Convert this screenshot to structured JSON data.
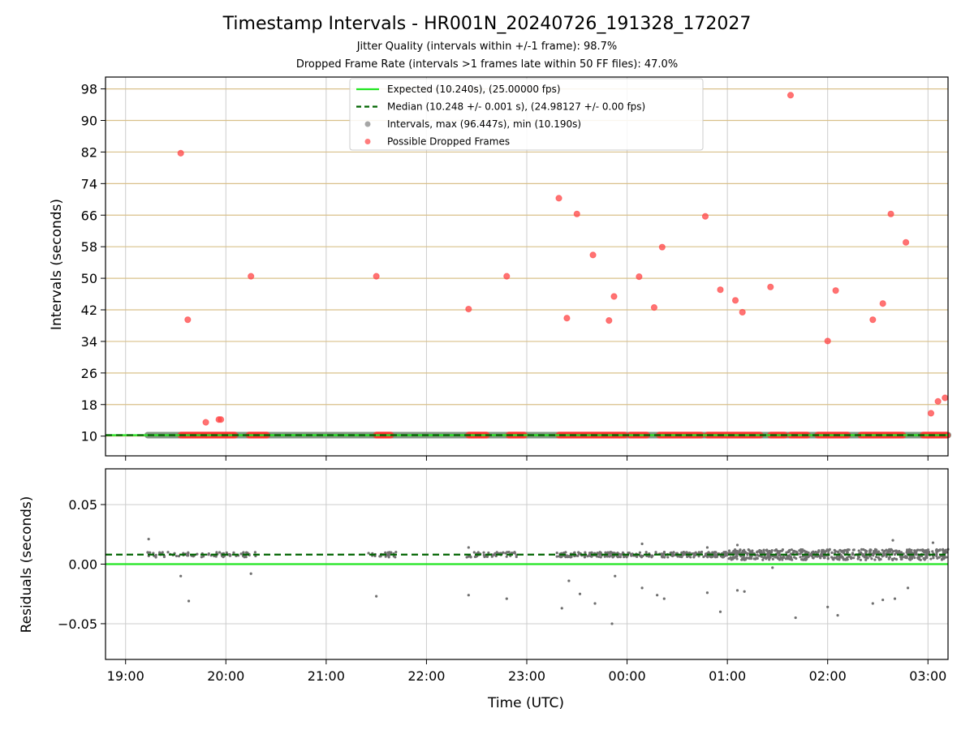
{
  "chart_data": [
    {
      "type": "scatter",
      "panel": "top",
      "title": "Timestamp Intervals - HR001N_20240726_191328_172027",
      "subtitles": [
        "Jitter Quality (intervals within +/-1 frame): 98.7%",
        "Dropped Frame Rate (intervals >1 frames late within 50 FF files): 47.0%"
      ],
      "xlabel": "",
      "ylabel": "Intervals (seconds)",
      "x_ticks": [
        "19:00",
        "20:00",
        "21:00",
        "22:00",
        "23:00",
        "00:00",
        "01:00",
        "02:00",
        "03:00"
      ],
      "y_ticks": [
        10,
        18,
        26,
        34,
        42,
        50,
        58,
        66,
        74,
        82,
        90,
        98
      ],
      "ylim": [
        5.0,
        101.0
      ],
      "xlim_hours": [
        -0.2,
        8.2
      ],
      "grid": true,
      "legend_position": "upper center",
      "legend": [
        {
          "label": "Expected (10.240s), (25.00000 fps)",
          "color": "#22e522",
          "style": "solid line"
        },
        {
          "label": "Median (10.248 +/- 0.001 s), (24.98127 +/- 0.00 fps)",
          "color": "#006400",
          "style": "dashed line"
        },
        {
          "label": "Intervals, max (96.447s), min (10.190s)",
          "color": "#808080",
          "style": "marker"
        },
        {
          "label": "Possible Dropped Frames",
          "color": "#ff4444",
          "style": "marker"
        }
      ],
      "expected_interval": 10.24,
      "median_interval": 10.248,
      "regular_intervals_range_hours": [
        0.22,
        8.2
      ],
      "dropped_frame_bands_hours": [
        [
          0.55,
          1.1
        ],
        [
          1.23,
          1.42
        ],
        [
          2.5,
          2.65
        ],
        [
          3.42,
          3.6
        ],
        [
          3.82,
          3.98
        ],
        [
          4.32,
          4.98
        ],
        [
          5.03,
          5.2
        ],
        [
          5.32,
          5.75
        ],
        [
          5.8,
          6.33
        ],
        [
          6.43,
          6.58
        ],
        [
          6.63,
          6.8
        ],
        [
          6.9,
          7.2
        ],
        [
          7.33,
          7.75
        ],
        [
          7.95,
          8.2
        ]
      ],
      "series": [
        {
          "name": "Possible Dropped Frames",
          "points": [
            [
              0.55,
              81.7
            ],
            [
              0.62,
              39.5
            ],
            [
              0.8,
              13.5
            ],
            [
              0.93,
              14.2
            ],
            [
              0.95,
              14.2
            ],
            [
              1.25,
              50.5
            ],
            [
              2.5,
              50.5
            ],
            [
              3.42,
              42.2
            ],
            [
              3.8,
              50.5
            ],
            [
              4.32,
              70.3
            ],
            [
              4.4,
              39.9
            ],
            [
              4.5,
              66.3
            ],
            [
              4.66,
              55.9
            ],
            [
              4.82,
              39.3
            ],
            [
              4.87,
              45.4
            ],
            [
              5.12,
              50.4
            ],
            [
              5.27,
              42.6
            ],
            [
              5.35,
              57.9
            ],
            [
              5.78,
              65.7
            ],
            [
              5.93,
              47.1
            ],
            [
              6.08,
              44.4
            ],
            [
              6.15,
              41.4
            ],
            [
              6.43,
              47.8
            ],
            [
              6.63,
              96.4
            ],
            [
              7.0,
              34.1
            ],
            [
              7.08,
              46.9
            ],
            [
              7.45,
              39.5
            ],
            [
              7.55,
              43.6
            ],
            [
              7.63,
              66.3
            ],
            [
              7.78,
              59.1
            ],
            [
              8.03,
              15.8
            ],
            [
              8.1,
              18.8
            ],
            [
              8.17,
              19.7
            ]
          ]
        }
      ]
    },
    {
      "type": "scatter",
      "panel": "bottom",
      "xlabel": "Time (UTC)",
      "ylabel": "Residuals (seconds)",
      "x_ticks": [
        "19:00",
        "20:00",
        "21:00",
        "22:00",
        "23:00",
        "00:00",
        "01:00",
        "02:00",
        "03:00"
      ],
      "y_ticks": [
        "−0.05",
        "0.00",
        "0.05"
      ],
      "ylim": [
        -0.08,
        0.08
      ],
      "grid": true,
      "expected_residual": 0.0,
      "median_residual": 0.008,
      "series": [
        {
          "name": "residuals",
          "points": [
            [
              0.23,
              0.021
            ],
            [
              0.55,
              -0.01
            ],
            [
              0.63,
              -0.031
            ],
            [
              1.25,
              -0.008
            ],
            [
              2.5,
              -0.027
            ],
            [
              3.42,
              -0.026
            ],
            [
              3.8,
              -0.029
            ],
            [
              4.35,
              -0.037
            ],
            [
              4.42,
              -0.014
            ],
            [
              4.53,
              -0.025
            ],
            [
              4.68,
              -0.033
            ],
            [
              4.85,
              -0.05
            ],
            [
              4.88,
              -0.01
            ],
            [
              5.15,
              -0.02
            ],
            [
              5.3,
              -0.026
            ],
            [
              5.37,
              -0.029
            ],
            [
              5.8,
              -0.024
            ],
            [
              5.93,
              -0.04
            ],
            [
              6.1,
              -0.022
            ],
            [
              6.17,
              -0.023
            ],
            [
              6.45,
              -0.003
            ],
            [
              6.68,
              -0.045
            ],
            [
              7.0,
              -0.036
            ],
            [
              7.1,
              -0.043
            ],
            [
              7.45,
              -0.033
            ],
            [
              7.55,
              -0.03
            ],
            [
              7.67,
              -0.029
            ],
            [
              7.8,
              -0.02
            ],
            [
              3.42,
              0.014
            ],
            [
              5.15,
              0.017
            ],
            [
              5.8,
              0.014
            ],
            [
              6.1,
              0.016
            ],
            [
              7.65,
              0.02
            ],
            [
              8.05,
              0.018
            ]
          ]
        }
      ]
    }
  ]
}
